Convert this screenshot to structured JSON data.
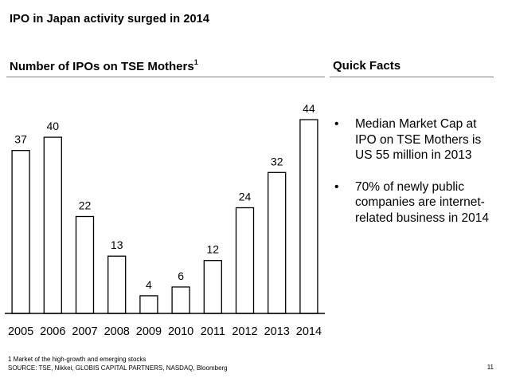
{
  "slide": {
    "title": "IPO in Japan activity surged in 2014",
    "page_number": "11"
  },
  "left_section": {
    "heading": "Number of IPOs on TSE Mothers",
    "heading_superscript": "1"
  },
  "right_section": {
    "heading": "Quick Facts",
    "bullet_symbol": "•",
    "facts": [
      "Median Market Cap at IPO on TSE Mothers is US 55 million in 2013",
      "70% of newly public companies are internet-related business in 2014"
    ]
  },
  "chart_data": {
    "type": "bar",
    "title": "Number of IPOs on TSE Mothers",
    "categories": [
      "2005",
      "2006",
      "2007",
      "2008",
      "2009",
      "2010",
      "2011",
      "2012",
      "2013",
      "2014"
    ],
    "values": [
      37,
      40,
      22,
      13,
      4,
      6,
      12,
      24,
      32,
      44
    ],
    "data_labels": [
      "37",
      "40",
      "22",
      "13",
      "4",
      "6",
      "12",
      "24",
      "32",
      "44"
    ],
    "xlabel": "",
    "ylabel": "",
    "ylim": [
      0,
      44
    ],
    "grid": false,
    "legend": "none",
    "bar_fill": "#ffffff",
    "bar_stroke": "#000000"
  },
  "footnotes": {
    "note": "1 Market of the high-growth and emerging stocks",
    "source": "SOURCE: TSE, Nikkei, GLOBIS CAPITAL PARTNERS, NASDAQ, Bloomberg"
  }
}
